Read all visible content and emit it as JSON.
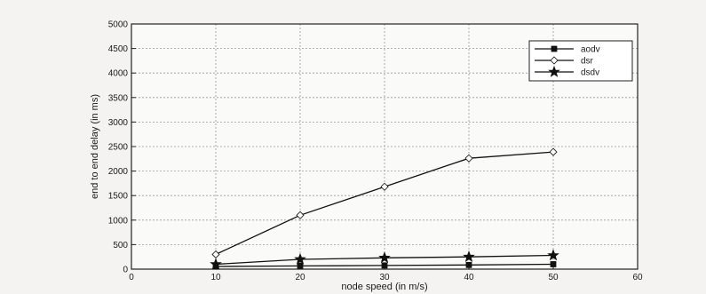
{
  "chart_data": {
    "type": "line",
    "title": "",
    "xlabel": "node speed (in m/s)",
    "ylabel": "end to end delay (in ms)",
    "xlim": [
      0,
      60
    ],
    "ylim": [
      0,
      5000
    ],
    "xticks": [
      0,
      10,
      20,
      30,
      40,
      50,
      60
    ],
    "yticks": [
      0,
      500,
      1000,
      1500,
      2000,
      2500,
      3000,
      3500,
      4000,
      4500,
      5000
    ],
    "grid": true,
    "legend_position": "top-right",
    "x": [
      10,
      20,
      30,
      40,
      50
    ],
    "series": [
      {
        "name": "aodv",
        "marker": "square",
        "values": [
          55,
          65,
          75,
          85,
          100
        ]
      },
      {
        "name": "dsr",
        "marker": "diamond",
        "values": [
          300,
          1100,
          1680,
          2260,
          2390
        ]
      },
      {
        "name": "dsdv",
        "marker": "star",
        "values": [
          100,
          200,
          230,
          250,
          280
        ]
      }
    ]
  }
}
